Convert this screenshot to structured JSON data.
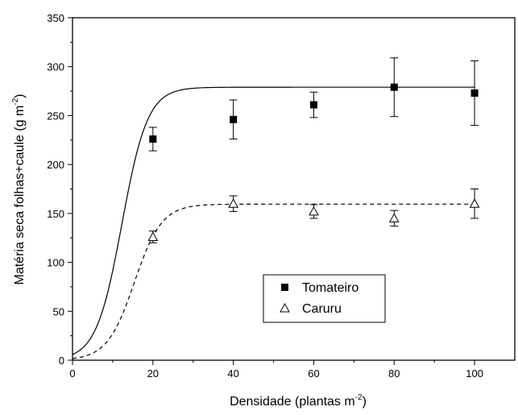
{
  "chart_data": {
    "type": "scatter",
    "xlabel": "Densidade (plantas m",
    "xlabel_sup": "-2",
    "xlabel_end": ")",
    "ylabel": "Matéria seca folhas+caule (g m",
    "ylabel_sup": "-2",
    "ylabel_end": ")",
    "xlim": [
      0,
      110
    ],
    "ylim": [
      0,
      350
    ],
    "x_ticks": [
      0,
      20,
      40,
      60,
      80,
      100
    ],
    "y_ticks": [
      0,
      50,
      100,
      150,
      200,
      250,
      300,
      350
    ],
    "x_tick_labels": [
      "0",
      "20",
      "40",
      "60",
      "80",
      "100"
    ],
    "y_tick_labels": [
      "0",
      "50",
      "100",
      "150",
      "200",
      "250",
      "300",
      "350"
    ],
    "legend_position": "lower-center",
    "series": [
      {
        "name": "Tomateiro",
        "marker": "filled-square",
        "line_style": "solid",
        "color": "#000000",
        "x": [
          20,
          40,
          60,
          80,
          100
        ],
        "y": [
          226,
          246,
          261,
          279,
          273
        ],
        "y_err": [
          12,
          20,
          13,
          30,
          33
        ],
        "fit_curve": {
          "max": 279,
          "midpoint": 12.3,
          "slope": 3.2
        }
      },
      {
        "name": "Caruru",
        "marker": "open-triangle",
        "line_style": "dashed",
        "color": "#000000",
        "x": [
          20,
          40,
          60,
          80,
          100
        ],
        "y": [
          126,
          160,
          152,
          145,
          160
        ],
        "y_err": [
          6,
          8,
          7,
          8,
          15
        ],
        "fit_curve": {
          "max": 159.5,
          "midpoint": 15.4,
          "slope": 3.4
        }
      }
    ]
  }
}
